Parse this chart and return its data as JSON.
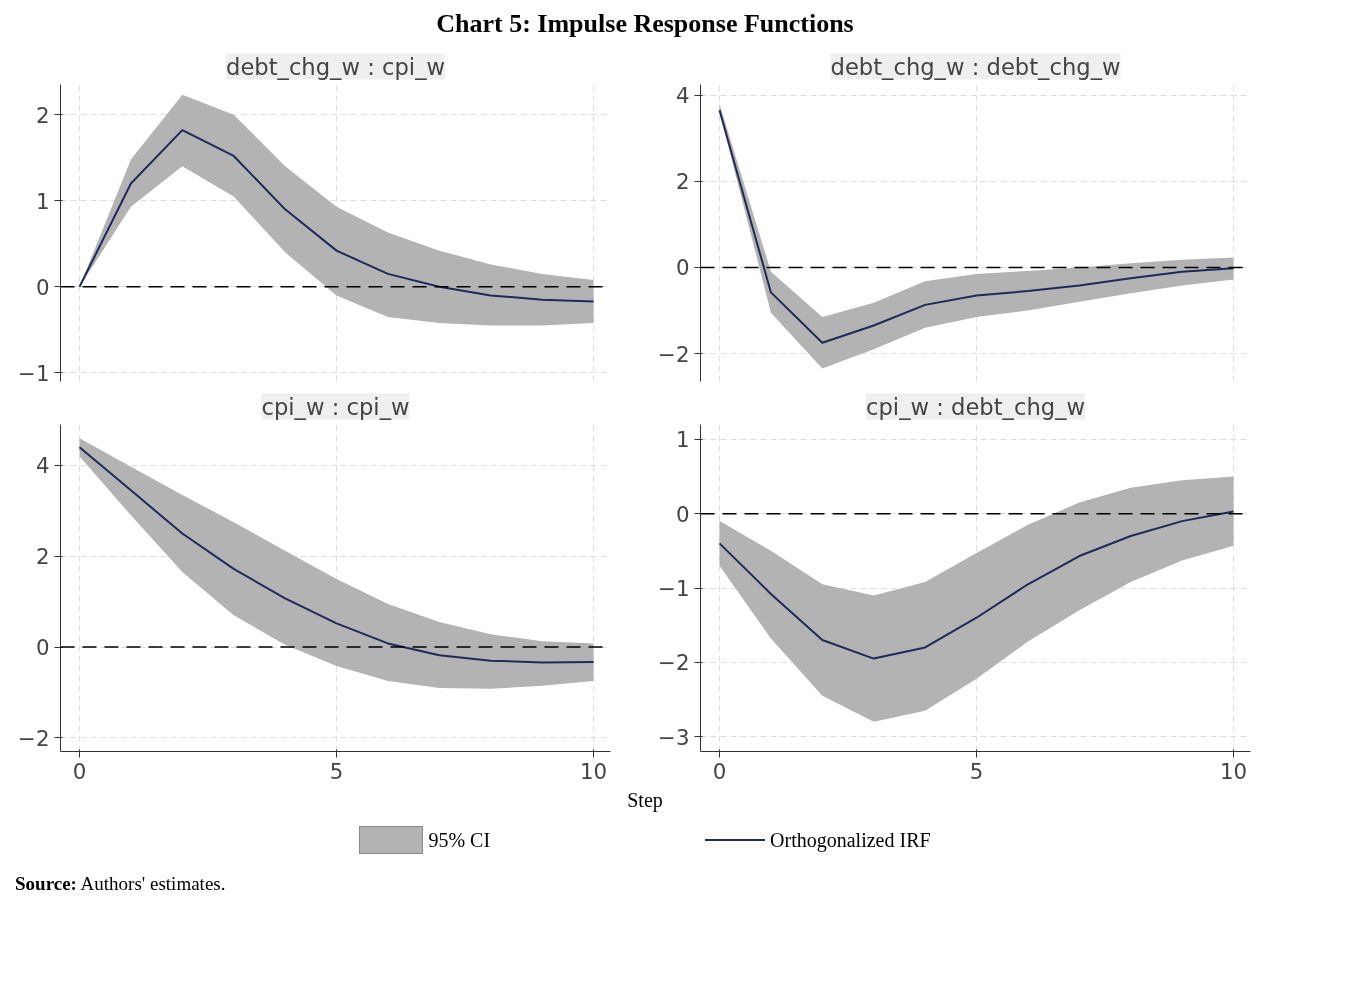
{
  "chart_data": [
    {
      "type": "line",
      "title": "debt_chg_w : cpi_w",
      "x": [
        0,
        1,
        2,
        3,
        4,
        5,
        6,
        7,
        8,
        9,
        10
      ],
      "xlim": [
        -0.37,
        10.33
      ],
      "xticks": [
        0,
        5,
        10
      ],
      "ylim": [
        -1.1,
        2.35
      ],
      "yticks": [
        -1,
        0,
        1,
        2
      ],
      "tick_labels": "y",
      "grid": true,
      "legend": "bottom",
      "xlabel": "Step",
      "annotations": [
        "Chart 5: Impulse Response Functions",
        "95% CI",
        "Source: Authors' estimates."
      ],
      "ref_lines": [
        {
          "axis": "y",
          "value": 0,
          "line_style": "dashed"
        }
      ],
      "series": [
        {
          "name": "Orthogonalized IRF",
          "color": "#1f2a5a",
          "values": [
            0,
            1.2,
            1.82,
            1.52,
            0.9,
            0.42,
            0.15,
            0,
            -0.1,
            -0.15,
            -0.17
          ],
          "upper": [
            0,
            1.48,
            2.23,
            2.0,
            1.4,
            0.93,
            0.63,
            0.42,
            0.26,
            0.15,
            0.08
          ],
          "lower": [
            0,
            0.93,
            1.4,
            1.05,
            0.4,
            -0.1,
            -0.35,
            -0.42,
            -0.45,
            -0.45,
            -0.42
          ]
        }
      ]
    },
    {
      "type": "line",
      "title": "debt_chg_w : debt_chg_w",
      "x": [
        0,
        1,
        2,
        3,
        4,
        5,
        6,
        7,
        8,
        9,
        10
      ],
      "xlim": [
        -0.37,
        10.33
      ],
      "xticks": [
        0,
        5,
        10
      ],
      "ylim": [
        -2.65,
        4.25
      ],
      "yticks": [
        -2,
        0,
        2,
        4
      ],
      "tick_labels": "y",
      "grid": true,
      "ref_lines": [
        {
          "axis": "y",
          "value": 0,
          "line_style": "dashed"
        }
      ],
      "series": [
        {
          "color": "#1f2a5a",
          "values": [
            3.65,
            -0.58,
            -1.75,
            -1.35,
            -0.87,
            -0.65,
            -0.55,
            -0.42,
            -0.25,
            -0.1,
            -0.02
          ],
          "upper": [
            3.8,
            -0.1,
            -1.15,
            -0.82,
            -0.32,
            -0.15,
            -0.08,
            0.0,
            0.1,
            0.18,
            0.23
          ],
          "lower": [
            3.6,
            -1.05,
            -2.35,
            -1.9,
            -1.4,
            -1.15,
            -1.0,
            -0.8,
            -0.6,
            -0.42,
            -0.28
          ]
        }
      ]
    },
    {
      "type": "line",
      "title": "cpi_w : cpi_w",
      "x": [
        0,
        1,
        2,
        3,
        4,
        5,
        6,
        7,
        8,
        9,
        10
      ],
      "xlim": [
        -0.37,
        10.33
      ],
      "xticks": [
        0,
        5,
        10
      ],
      "ylim": [
        -2.3,
        4.9
      ],
      "yticks": [
        -2,
        0,
        2,
        4
      ],
      "grid": true,
      "ref_lines": [
        {
          "axis": "y",
          "value": 0,
          "line_style": "dashed"
        }
      ],
      "series": [
        {
          "color": "#1f2a5a",
          "values": [
            4.4,
            3.45,
            2.5,
            1.72,
            1.07,
            0.52,
            0.08,
            -0.18,
            -0.3,
            -0.34,
            -0.33
          ],
          "upper": [
            4.6,
            3.97,
            3.35,
            2.75,
            2.12,
            1.5,
            0.95,
            0.55,
            0.28,
            0.13,
            0.08
          ],
          "lower": [
            4.2,
            2.9,
            1.65,
            0.7,
            0.05,
            -0.42,
            -0.75,
            -0.9,
            -0.92,
            -0.85,
            -0.75
          ]
        }
      ]
    },
    {
      "type": "line",
      "title": "cpi_w : debt_chg_w",
      "x": [
        0,
        1,
        2,
        3,
        4,
        5,
        6,
        7,
        8,
        9,
        10
      ],
      "xlim": [
        -0.37,
        10.33
      ],
      "xticks": [
        0,
        5,
        10
      ],
      "ylim": [
        -3.2,
        1.2
      ],
      "yticks": [
        -3,
        -2,
        -1,
        0,
        1
      ],
      "grid": true,
      "ref_lines": [
        {
          "axis": "y",
          "value": 0,
          "line_style": "dashed"
        }
      ],
      "series": [
        {
          "color": "#1f2a5a",
          "values": [
            -0.4,
            -1.08,
            -1.7,
            -1.95,
            -1.8,
            -1.4,
            -0.95,
            -0.57,
            -0.3,
            -0.1,
            0.03
          ],
          "upper": [
            -0.1,
            -0.5,
            -0.95,
            -1.1,
            -0.92,
            -0.53,
            -0.15,
            0.15,
            0.35,
            0.45,
            0.5
          ],
          "lower": [
            -0.7,
            -1.68,
            -2.45,
            -2.8,
            -2.65,
            -2.22,
            -1.72,
            -1.3,
            -0.92,
            -0.63,
            -0.43
          ]
        }
      ]
    }
  ]
}
